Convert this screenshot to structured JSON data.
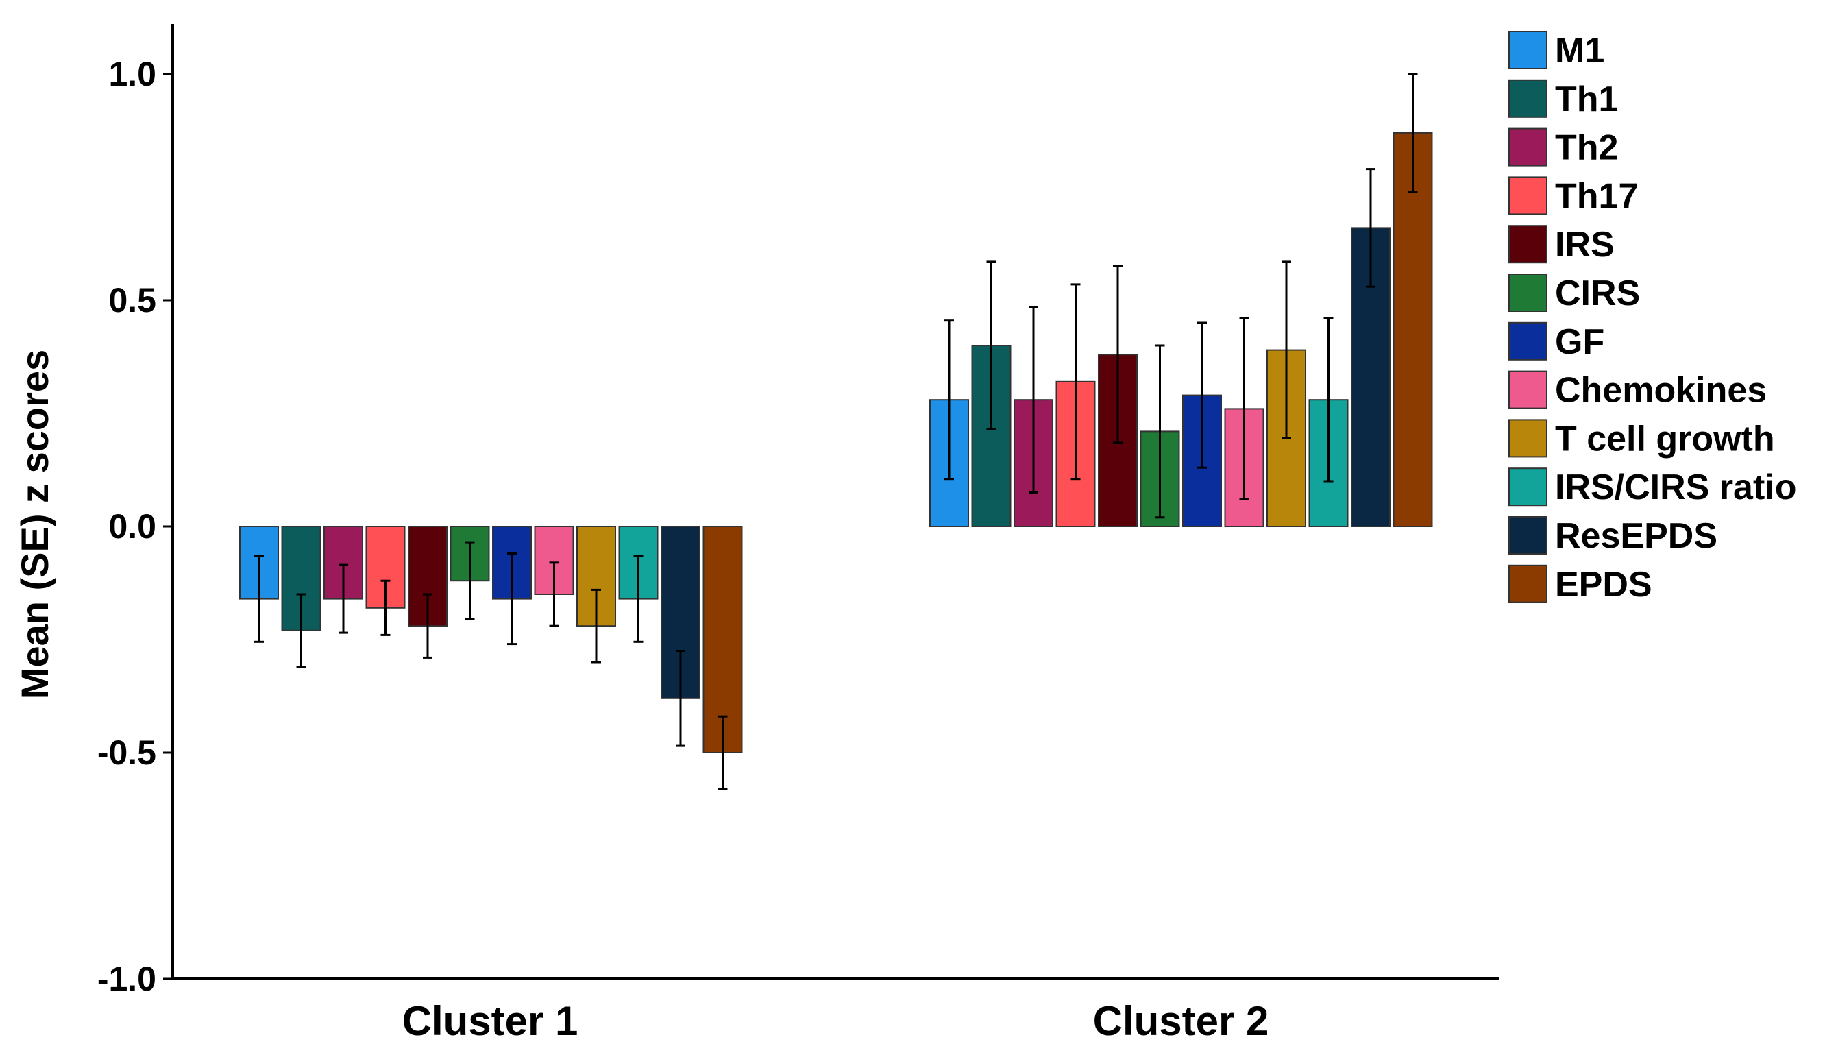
{
  "chart_data": {
    "type": "bar",
    "title": "",
    "xlabel": "",
    "ylabel": "Mean (SE) z scores",
    "ylim": [
      -1.0,
      1.0
    ],
    "yticks": [
      1.0,
      0.5,
      0.0,
      -0.5,
      -1.0
    ],
    "ytick_labels": [
      "1.0",
      "0.5",
      "0.0",
      "-0.5",
      "-1.0"
    ],
    "grid": false,
    "legend_position": "top-right",
    "categories": [
      "Cluster 1",
      "Cluster 2"
    ],
    "series": [
      {
        "name": "M1",
        "color": "#1E90E8",
        "values": [
          -0.16,
          0.28
        ],
        "errors": [
          0.095,
          0.175
        ]
      },
      {
        "name": "Th1",
        "color": "#0B5C5A",
        "values": [
          -0.23,
          0.4
        ],
        "errors": [
          0.08,
          0.185
        ]
      },
      {
        "name": "Th2",
        "color": "#9B1B5A",
        "values": [
          -0.16,
          0.28
        ],
        "errors": [
          0.075,
          0.205
        ]
      },
      {
        "name": "Th17",
        "color": "#FF5055",
        "values": [
          -0.18,
          0.32
        ],
        "errors": [
          0.06,
          0.215
        ]
      },
      {
        "name": "IRS",
        "color": "#5A0008",
        "values": [
          -0.22,
          0.38
        ],
        "errors": [
          0.07,
          0.195
        ]
      },
      {
        "name": "CIRS",
        "color": "#1F7A35",
        "values": [
          -0.12,
          0.21
        ],
        "errors": [
          0.085,
          0.19
        ]
      },
      {
        "name": "GF",
        "color": "#0A2E9B",
        "values": [
          -0.16,
          0.29
        ],
        "errors": [
          0.1,
          0.16
        ]
      },
      {
        "name": "Chemokines",
        "color": "#EE5A8E",
        "values": [
          -0.15,
          0.26
        ],
        "errors": [
          0.07,
          0.2
        ]
      },
      {
        "name": "T cell growth",
        "color": "#B8860B",
        "values": [
          -0.22,
          0.39
        ],
        "errors": [
          0.08,
          0.195
        ]
      },
      {
        "name": "IRS/CIRS ratio",
        "color": "#12A39A",
        "values": [
          -0.16,
          0.28
        ],
        "errors": [
          0.095,
          0.18
        ]
      },
      {
        "name": "ResEPDS",
        "color": "#0A2743",
        "values": [
          -0.38,
          0.66
        ],
        "errors": [
          0.105,
          0.13
        ]
      },
      {
        "name": "EPDS",
        "color": "#8B3A00",
        "values": [
          -0.5,
          0.87
        ],
        "errors": [
          0.08,
          0.13
        ]
      }
    ]
  }
}
